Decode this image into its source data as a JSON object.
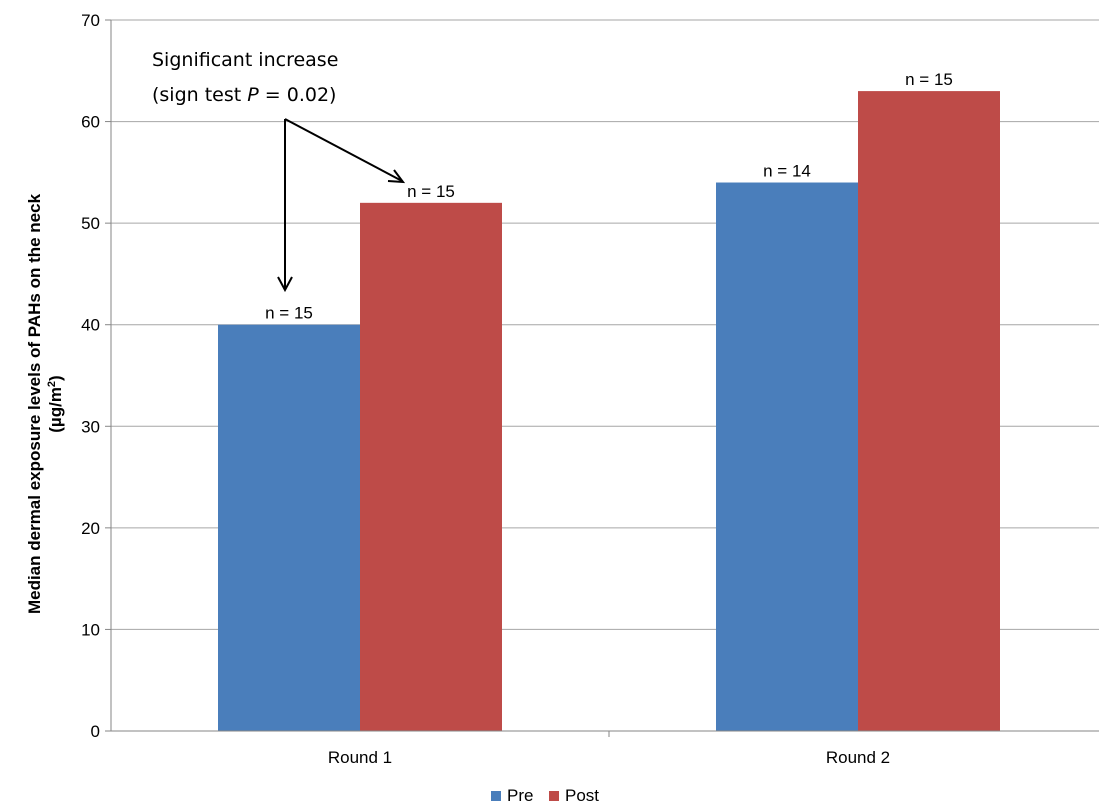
{
  "chart_data": {
    "type": "bar",
    "title": "",
    "xlabel": "",
    "ylabel": "Median dermal exposure levels of PAHs on the neck",
    "ylabel_unit_prefix": "(µg/m",
    "ylabel_unit_sup": "2",
    "ylabel_unit_suffix": ")",
    "ylim": [
      0,
      70
    ],
    "yticks": [
      "0",
      "10",
      "20",
      "30",
      "40",
      "50",
      "60",
      "70"
    ],
    "grid": true,
    "legend_position": "bottom",
    "categories": [
      "Round 1",
      "Round 2"
    ],
    "series": [
      {
        "name": "Pre",
        "color": "#4a7ebb",
        "values": [
          40,
          54
        ],
        "labels": [
          "n = 15",
          "n = 14"
        ]
      },
      {
        "name": "Post",
        "color": "#be4b48",
        "values": [
          52,
          63
        ],
        "labels": [
          "n = 15",
          "n = 15"
        ]
      }
    ],
    "annotation": {
      "line1": "Significant increase",
      "line2_prefix": "(sign test ",
      "line2_italic": "P",
      "line2_suffix": " = 0.02)"
    }
  }
}
